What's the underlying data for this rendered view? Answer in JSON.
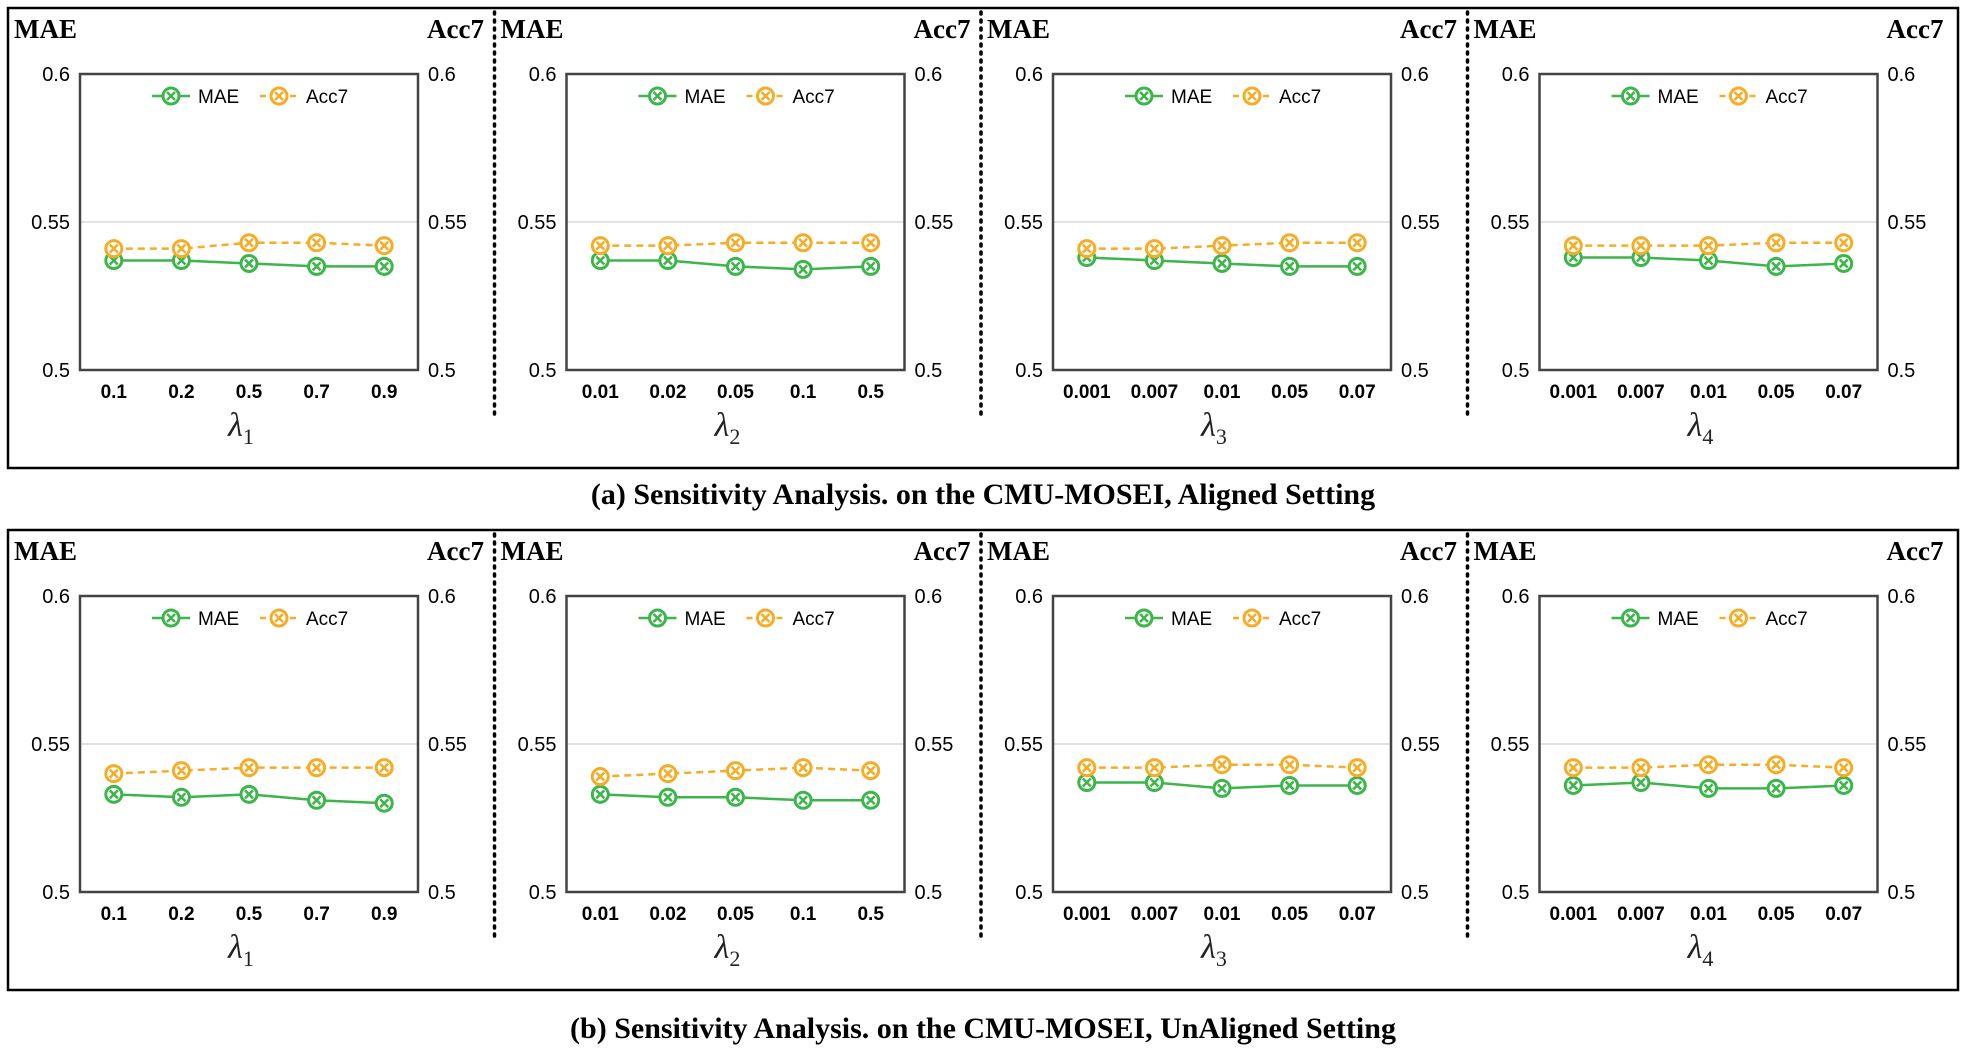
{
  "figure": {
    "captions": [
      "(a) Sensitivity Analysis. on the CMU-MOSEI, Aligned Setting",
      "(b) Sensitivity Analysis. on the CMU-MOSEI, UnAligned Setting"
    ]
  },
  "colors": {
    "mae": "#3cb54a",
    "acc7": "#f5ac27",
    "grid": "#d9d9d9",
    "frame": "#444444"
  },
  "chart_data": [
    {
      "type": "line",
      "row": "a",
      "xlabel": "λ",
      "xsub": "1",
      "categories": [
        "0.1",
        "0.2",
        "0.5",
        "0.7",
        "0.9"
      ],
      "left_axis_label": "MAE",
      "right_axis_label": "Acc7",
      "ylim": [
        0.5,
        0.6
      ],
      "yticks": [
        "0.5",
        "0.55",
        "0.6"
      ],
      "y2lim": [
        0.5,
        0.6
      ],
      "y2ticks": [
        "0.5",
        "0.55",
        "0.6"
      ],
      "legend": [
        "MAE",
        "Acc7"
      ],
      "series": [
        {
          "name": "MAE",
          "axis": "left",
          "values": [
            0.537,
            0.537,
            0.536,
            0.535,
            0.535
          ]
        },
        {
          "name": "Acc7",
          "axis": "right",
          "values": [
            0.541,
            0.541,
            0.543,
            0.543,
            0.542
          ]
        }
      ]
    },
    {
      "type": "line",
      "row": "a",
      "xlabel": "λ",
      "xsub": "2",
      "categories": [
        "0.01",
        "0.02",
        "0.05",
        "0.1",
        "0.5"
      ],
      "left_axis_label": "MAE",
      "right_axis_label": "Acc7",
      "ylim": [
        0.5,
        0.6
      ],
      "yticks": [
        "0.5",
        "0.55",
        "0.6"
      ],
      "y2lim": [
        0.5,
        0.6
      ],
      "y2ticks": [
        "0.5",
        "0.55",
        "0.6"
      ],
      "legend": [
        "MAE",
        "Acc7"
      ],
      "series": [
        {
          "name": "MAE",
          "axis": "left",
          "values": [
            0.537,
            0.537,
            0.535,
            0.534,
            0.535
          ]
        },
        {
          "name": "Acc7",
          "axis": "right",
          "values": [
            0.542,
            0.542,
            0.543,
            0.543,
            0.543
          ]
        }
      ]
    },
    {
      "type": "line",
      "row": "a",
      "xlabel": "λ",
      "xsub": "3",
      "categories": [
        "0.001",
        "0.007",
        "0.01",
        "0.05",
        "0.07"
      ],
      "left_axis_label": "MAE",
      "right_axis_label": "Acc7",
      "ylim": [
        0.5,
        0.6
      ],
      "yticks": [
        "0.5",
        "0.55",
        "0.6"
      ],
      "y2lim": [
        0.5,
        0.6
      ],
      "y2ticks": [
        "0.5",
        "0.55",
        "0.6"
      ],
      "legend": [
        "MAE",
        "Acc7"
      ],
      "series": [
        {
          "name": "MAE",
          "axis": "left",
          "values": [
            0.538,
            0.537,
            0.536,
            0.535,
            0.535
          ]
        },
        {
          "name": "Acc7",
          "axis": "right",
          "values": [
            0.541,
            0.541,
            0.542,
            0.543,
            0.543
          ]
        }
      ]
    },
    {
      "type": "line",
      "row": "a",
      "xlabel": "λ",
      "xsub": "4",
      "categories": [
        "0.001",
        "0.007",
        "0.01",
        "0.05",
        "0.07"
      ],
      "left_axis_label": "MAE",
      "right_axis_label": "Acc7",
      "ylim": [
        0.5,
        0.6
      ],
      "yticks": [
        "0.5",
        "0.55",
        "0.6"
      ],
      "y2lim": [
        0.5,
        0.6
      ],
      "y2ticks": [
        "0.5",
        "0.55",
        "0.6"
      ],
      "legend": [
        "MAE",
        "Acc7"
      ],
      "series": [
        {
          "name": "MAE",
          "axis": "left",
          "values": [
            0.538,
            0.538,
            0.537,
            0.535,
            0.536
          ]
        },
        {
          "name": "Acc7",
          "axis": "right",
          "values": [
            0.542,
            0.542,
            0.542,
            0.543,
            0.543
          ]
        }
      ]
    },
    {
      "type": "line",
      "row": "b",
      "xlabel": "λ",
      "xsub": "1",
      "categories": [
        "0.1",
        "0.2",
        "0.5",
        "0.7",
        "0.9"
      ],
      "left_axis_label": "MAE",
      "right_axis_label": "Acc7",
      "ylim": [
        0.5,
        0.6
      ],
      "yticks": [
        "0.5",
        "0.55",
        "0.6"
      ],
      "y2lim": [
        0.5,
        0.6
      ],
      "y2ticks": [
        "0.5",
        "0.55",
        "0.6"
      ],
      "legend": [
        "MAE",
        "Acc7"
      ],
      "series": [
        {
          "name": "MAE",
          "axis": "left",
          "values": [
            0.533,
            0.532,
            0.533,
            0.531,
            0.53
          ]
        },
        {
          "name": "Acc7",
          "axis": "right",
          "values": [
            0.54,
            0.541,
            0.542,
            0.542,
            0.542
          ]
        }
      ]
    },
    {
      "type": "line",
      "row": "b",
      "xlabel": "λ",
      "xsub": "2",
      "categories": [
        "0.01",
        "0.02",
        "0.05",
        "0.1",
        "0.5"
      ],
      "left_axis_label": "MAE",
      "right_axis_label": "Acc7",
      "ylim": [
        0.5,
        0.6
      ],
      "yticks": [
        "0.5",
        "0.55",
        "0.6"
      ],
      "y2lim": [
        0.5,
        0.6
      ],
      "y2ticks": [
        "0.5",
        "0.55",
        "0.6"
      ],
      "legend": [
        "MAE",
        "Acc7"
      ],
      "series": [
        {
          "name": "MAE",
          "axis": "left",
          "values": [
            0.533,
            0.532,
            0.532,
            0.531,
            0.531
          ]
        },
        {
          "name": "Acc7",
          "axis": "right",
          "values": [
            0.539,
            0.54,
            0.541,
            0.542,
            0.541
          ]
        }
      ]
    },
    {
      "type": "line",
      "row": "b",
      "xlabel": "λ",
      "xsub": "3",
      "categories": [
        "0.001",
        "0.007",
        "0.01",
        "0.05",
        "0.07"
      ],
      "left_axis_label": "MAE",
      "right_axis_label": "Acc7",
      "ylim": [
        0.5,
        0.6
      ],
      "yticks": [
        "0.5",
        "0.55",
        "0.6"
      ],
      "y2lim": [
        0.5,
        0.6
      ],
      "y2ticks": [
        "0.5",
        "0.55",
        "0.6"
      ],
      "legend": [
        "MAE",
        "Acc7"
      ],
      "series": [
        {
          "name": "MAE",
          "axis": "left",
          "values": [
            0.537,
            0.537,
            0.535,
            0.536,
            0.536
          ]
        },
        {
          "name": "Acc7",
          "axis": "right",
          "values": [
            0.542,
            0.542,
            0.543,
            0.543,
            0.542
          ]
        }
      ]
    },
    {
      "type": "line",
      "row": "b",
      "xlabel": "λ",
      "xsub": "4",
      "categories": [
        "0.001",
        "0.007",
        "0.01",
        "0.05",
        "0.07"
      ],
      "left_axis_label": "MAE",
      "right_axis_label": "Acc7",
      "ylim": [
        0.5,
        0.6
      ],
      "yticks": [
        "0.5",
        "0.55",
        "0.6"
      ],
      "y2lim": [
        0.5,
        0.6
      ],
      "y2ticks": [
        "0.5",
        "0.55",
        "0.6"
      ],
      "legend": [
        "MAE",
        "Acc7"
      ],
      "series": [
        {
          "name": "MAE",
          "axis": "left",
          "values": [
            0.536,
            0.537,
            0.535,
            0.535,
            0.536
          ]
        },
        {
          "name": "Acc7",
          "axis": "right",
          "values": [
            0.542,
            0.542,
            0.543,
            0.543,
            0.542
          ]
        }
      ]
    }
  ]
}
